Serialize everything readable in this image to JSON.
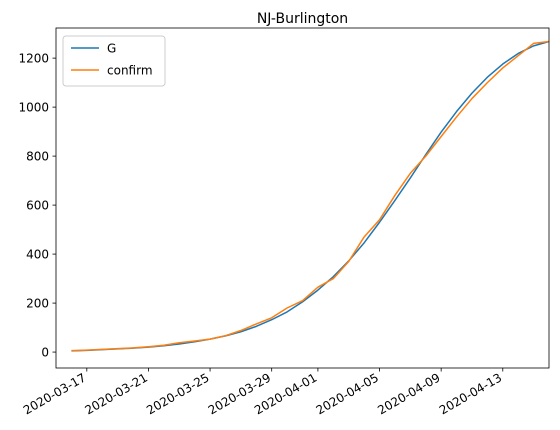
{
  "chart_data": {
    "type": "line",
    "title": "NJ-Burlington",
    "xlabel": "",
    "ylabel": "",
    "grid": false,
    "legend_position": "top-left",
    "xlim": [
      "2020-03-15",
      "2020-04-16"
    ],
    "ylim": [
      -65,
      1323
    ],
    "x_ticks": [
      "2020-03-17",
      "2020-03-21",
      "2020-03-25",
      "2020-03-29",
      "2020-04-01",
      "2020-04-05",
      "2020-04-09",
      "2020-04-13"
    ],
    "y_ticks": [
      0,
      200,
      400,
      600,
      800,
      1000,
      1200
    ],
    "x": [
      "2020-03-16",
      "2020-03-17",
      "2020-03-18",
      "2020-03-19",
      "2020-03-20",
      "2020-03-21",
      "2020-03-22",
      "2020-03-23",
      "2020-03-24",
      "2020-03-25",
      "2020-03-26",
      "2020-03-27",
      "2020-03-28",
      "2020-03-29",
      "2020-03-30",
      "2020-03-31",
      "2020-04-01",
      "2020-04-02",
      "2020-04-03",
      "2020-04-04",
      "2020-04-05",
      "2020-04-06",
      "2020-04-07",
      "2020-04-08",
      "2020-04-09",
      "2020-04-10",
      "2020-04-11",
      "2020-04-12",
      "2020-04-13",
      "2020-04-14",
      "2020-04-15",
      "2020-04-16"
    ],
    "series": [
      {
        "name": "G",
        "color": "#1f77b4",
        "values": [
          5,
          7,
          10,
          13,
          16,
          20,
          26,
          33,
          42,
          53,
          66,
          83,
          105,
          132,
          164,
          205,
          253,
          308,
          372,
          446,
          530,
          619,
          711,
          806,
          898,
          982,
          1057,
          1122,
          1176,
          1219,
          1250,
          1268
        ]
      },
      {
        "name": "confirm",
        "color": "#ff7f0e",
        "values": [
          6,
          8,
          11,
          14,
          17,
          22,
          28,
          38,
          45,
          53,
          67,
          88,
          115,
          140,
          180,
          210,
          265,
          300,
          370,
          470,
          540,
          640,
          730,
          800,
          880,
          960,
          1035,
          1100,
          1160,
          1210,
          1260,
          1268
        ]
      }
    ]
  }
}
